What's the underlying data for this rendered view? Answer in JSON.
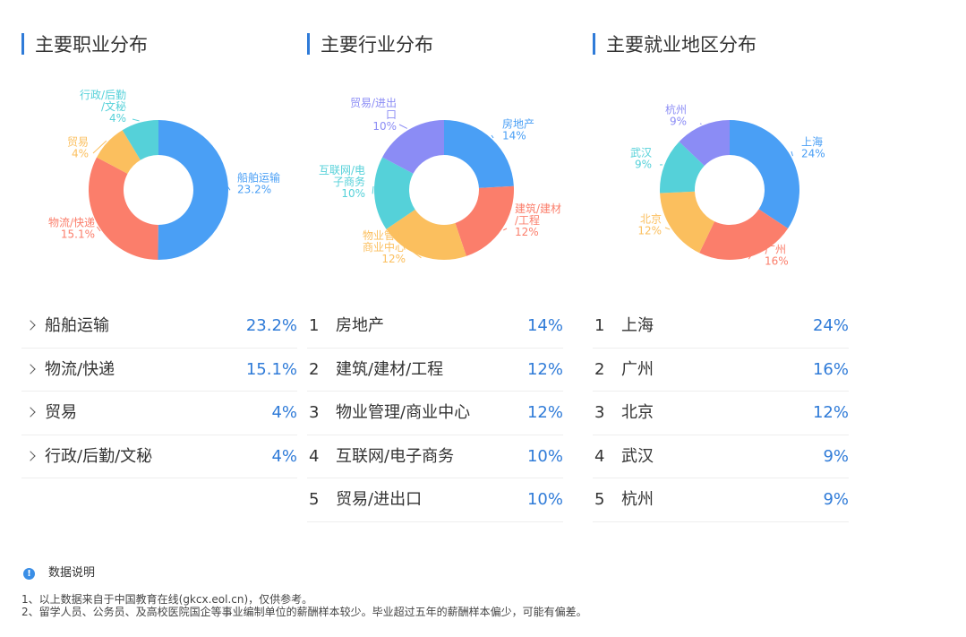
{
  "sections": [
    {
      "title": "主要职业分布",
      "list_style": "arrow",
      "items": [
        {
          "label": "船舶运输",
          "value": "23.2%"
        },
        {
          "label": "物流/快递",
          "value": "15.1%"
        },
        {
          "label": "贸易",
          "value": "4%"
        },
        {
          "label": "行政/后勤/文秘",
          "value": "4%"
        }
      ]
    },
    {
      "title": "主要行业分布",
      "list_style": "rank",
      "items": [
        {
          "rank": "1",
          "label": "房地产",
          "value": "14%"
        },
        {
          "rank": "2",
          "label": "建筑/建材/工程",
          "value": "12%"
        },
        {
          "rank": "3",
          "label": "物业管理/商业中心",
          "value": "12%"
        },
        {
          "rank": "4",
          "label": "互联网/电子商务",
          "value": "10%"
        },
        {
          "rank": "5",
          "label": "贸易/进出口",
          "value": "10%"
        }
      ]
    },
    {
      "title": "主要就业地区分布",
      "list_style": "rank",
      "items": [
        {
          "rank": "1",
          "label": "上海",
          "value": "24%"
        },
        {
          "rank": "2",
          "label": "广州",
          "value": "16%"
        },
        {
          "rank": "3",
          "label": "北京",
          "value": "12%"
        },
        {
          "rank": "4",
          "label": "武汉",
          "value": "9%"
        },
        {
          "rank": "5",
          "label": "杭州",
          "value": "9%"
        }
      ]
    }
  ],
  "chart_data": [
    {
      "type": "pie",
      "slices": [
        {
          "name": "船舶运输",
          "value": 23.2,
          "color": "#4a9ff5",
          "label_lines": [
            "船舶运输",
            "23.2%"
          ]
        },
        {
          "name": "物流/快递",
          "value": 15.1,
          "color": "#fb7e6b",
          "label_lines": [
            "物流/快递",
            "15.1%"
          ]
        },
        {
          "name": "贸易",
          "value": 4,
          "color": "#fbbf5e",
          "label_lines": [
            "贸易",
            "4%"
          ]
        },
        {
          "name": "行政/后勤/文秘",
          "value": 4,
          "color": "#55d1d9",
          "label_lines": [
            "行政/后勤",
            "/文秘",
            "4%"
          ]
        }
      ]
    },
    {
      "type": "pie",
      "slices": [
        {
          "name": "房地产",
          "value": 14,
          "color": "#4a9ff5",
          "label_lines": [
            "房地产",
            "14%"
          ]
        },
        {
          "name": "建筑/建材/工程",
          "value": 12,
          "color": "#fb7e6b",
          "label_lines": [
            "建筑/建材",
            "/工程",
            "12%"
          ]
        },
        {
          "name": "物业管理/商业中心",
          "value": 12,
          "color": "#fbbf5e",
          "label_lines": [
            "物业管理",
            "商业中心",
            "12%"
          ]
        },
        {
          "name": "互联网/电子商务",
          "value": 10,
          "color": "#55d1d9",
          "label_lines": [
            "互联网/电",
            "子商务",
            "10%"
          ]
        },
        {
          "name": "贸易/进出口",
          "value": 10,
          "color": "#8b8cf5",
          "label_lines": [
            "贸易/进出",
            "口",
            "10%"
          ]
        }
      ]
    },
    {
      "type": "pie",
      "slices": [
        {
          "name": "上海",
          "value": 24,
          "color": "#4a9ff5",
          "label_lines": [
            "上海",
            "24%"
          ]
        },
        {
          "name": "广州",
          "value": 16,
          "color": "#fb7e6b",
          "label_lines": [
            "广州",
            "16%"
          ]
        },
        {
          "name": "北京",
          "value": 12,
          "color": "#fbbf5e",
          "label_lines": [
            "北京",
            "12%"
          ]
        },
        {
          "name": "武汉",
          "value": 9,
          "color": "#55d1d9",
          "label_lines": [
            "武汉",
            "9%"
          ]
        },
        {
          "name": "杭州",
          "value": 9,
          "color": "#8b8cf5",
          "label_lines": [
            "杭州",
            "9%"
          ]
        }
      ]
    }
  ],
  "notes": {
    "title": "数据说明",
    "lines": [
      "1、以上数据来自于中国教育在线(gkcx.eol.cn)，仅供参考。",
      "2、留学人员、公务员、及高校医院国企等事业编制单位的薪酬样本较少。毕业超过五年的薪酬样本偏少，可能有偏差。"
    ]
  }
}
